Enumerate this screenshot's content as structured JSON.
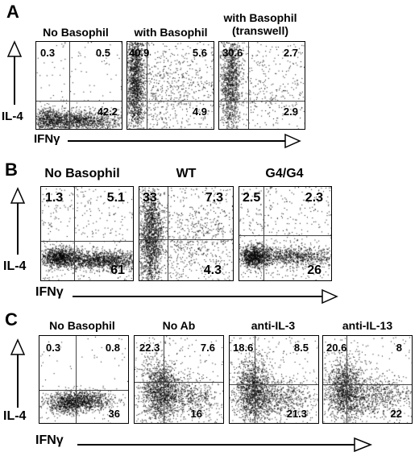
{
  "rows": [
    {
      "letter": "A",
      "y_label": "IL-4",
      "x_label": "IFNγ",
      "panels": [
        {
          "title": "No Basophil",
          "q_ul": "0.3",
          "q_ur": "0.5",
          "q_lr": "42.2"
        },
        {
          "title": "with Basophil",
          "q_ul": "40.9",
          "q_ur": "5.6",
          "q_lr": "4.9"
        },
        {
          "title_line1": "with Basophil",
          "title_line2": "(transwell)",
          "q_ul": "30.6",
          "q_ur": "2.7",
          "q_lr": "2.9"
        }
      ]
    },
    {
      "letter": "B",
      "y_label": "IL-4",
      "x_label": "IFNγ",
      "panels": [
        {
          "title": "No Basophil",
          "q_ul": "1.3",
          "q_ur": "5.1",
          "q_lr": "61"
        },
        {
          "title": "WT",
          "q_ul": "33",
          "q_ur": "7.3",
          "q_lr": "4.3"
        },
        {
          "title": "G4/G4",
          "q_ul": "2.5",
          "q_ur": "2.3",
          "q_lr": "26"
        }
      ]
    },
    {
      "letter": "C",
      "y_label": "IL-4",
      "x_label": "IFNγ",
      "panels": [
        {
          "title": "No Basophil",
          "q_ul": "0.3",
          "q_ur": "0.8",
          "q_lr": "36"
        },
        {
          "title": "No Ab",
          "q_ul": "22.3",
          "q_ur": "7.6",
          "q_lr": "16"
        },
        {
          "title": "anti-IL-3",
          "q_ul": "18.6",
          "q_ur": "8.5",
          "q_lr": "21.3"
        },
        {
          "title": "anti-IL-13",
          "q_ul": "20.6",
          "q_ur": "8",
          "q_lr": "22"
        }
      ]
    }
  ]
}
